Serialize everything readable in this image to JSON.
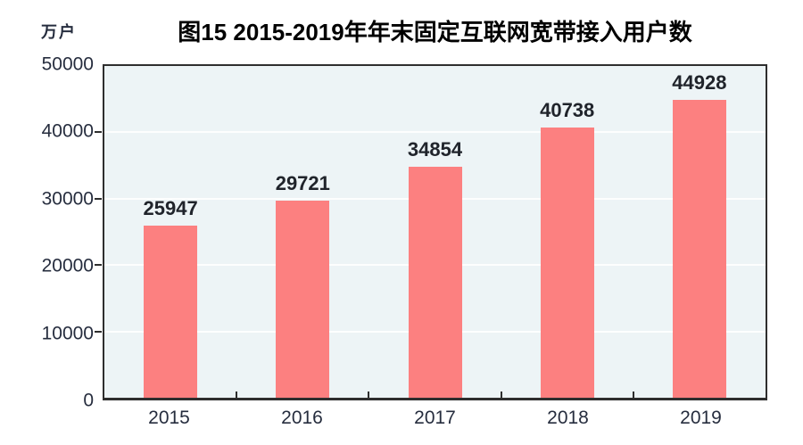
{
  "header": {
    "unit_label": "万户",
    "title": "图15 2015-2019年年末固定互联网宽带接入用户数"
  },
  "chart_data": {
    "type": "bar",
    "title": "图15 2015-2019年年末固定互联网宽带接入用户数",
    "ylabel": "万户",
    "xlabel": "",
    "categories": [
      "2015",
      "2016",
      "2017",
      "2018",
      "2019"
    ],
    "values": [
      25947,
      29721,
      34854,
      40738,
      44928
    ],
    "value_labels_shown": true,
    "ylim": [
      0,
      50000
    ],
    "ytick_interval": 10000,
    "ytick_labels": [
      "0",
      "10000",
      "20000",
      "30000",
      "40000",
      "50000"
    ],
    "grid": true,
    "legend": "none",
    "colors": {
      "bar": "#fc8080",
      "plot_background": "#edf4f6",
      "axis_border": "#2e2e2e",
      "gridline": "rgba(255,255,255,0.85)",
      "axis_text": "#262d3e",
      "value_text": "#20242b",
      "title_text": "#000000"
    }
  }
}
